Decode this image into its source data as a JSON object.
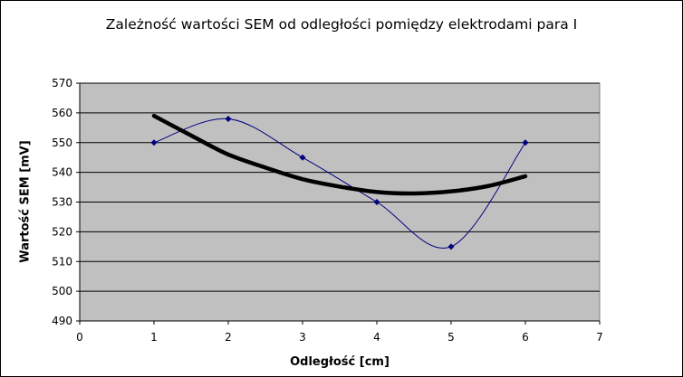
{
  "chart_data": {
    "type": "scatter",
    "title": "Zależność wartości SEM od odległości pomiędzy elektrodami para I",
    "xlabel": "Odległość [cm]",
    "ylabel": "Wartość SEM [mV]",
    "xlim": [
      0,
      7
    ],
    "ylim": [
      490,
      570
    ],
    "xticks": [
      0,
      1,
      2,
      3,
      4,
      5,
      6,
      7
    ],
    "yticks": [
      490,
      500,
      510,
      520,
      530,
      540,
      550,
      560,
      570
    ],
    "grid": "horizontal",
    "plot_background": "#c0c0c0",
    "series": [
      {
        "values": [
          [
            1,
            550
          ],
          [
            2,
            558
          ],
          [
            3,
            545
          ],
          [
            4,
            530
          ],
          [
            5,
            515
          ],
          [
            6,
            550
          ]
        ],
        "color": "#000080",
        "line": "smooth",
        "marker": "diamond"
      },
      {
        "trendline": "polynomial",
        "values": [
          [
            1,
            559
          ],
          [
            1.5,
            552.4
          ],
          [
            2,
            546
          ],
          [
            2.5,
            541.6
          ],
          [
            3,
            537.7
          ],
          [
            3.5,
            535.2
          ],
          [
            4,
            533.4
          ],
          [
            4.5,
            532.9
          ],
          [
            5,
            533.6
          ],
          [
            5.5,
            535.4
          ],
          [
            6,
            538.7
          ]
        ],
        "color": "#000000",
        "line": "thick"
      }
    ]
  }
}
